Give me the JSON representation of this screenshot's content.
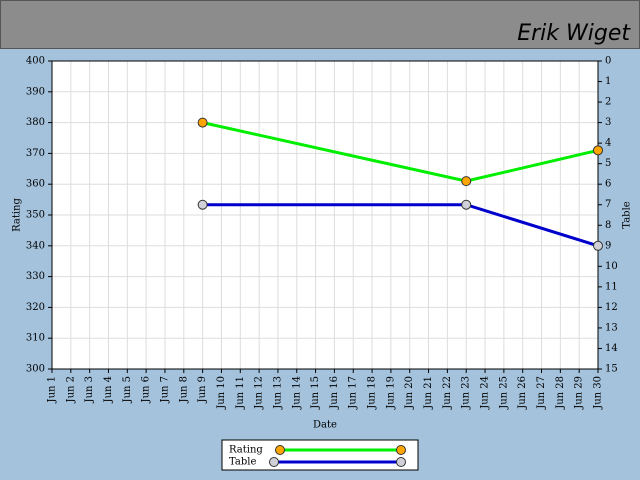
{
  "header": {
    "title": "Erik Wiget"
  },
  "chart_data": {
    "type": "line",
    "categories": [
      "Jun 1",
      "Jun 2",
      "Jun 3",
      "Jun 4",
      "Jun 5",
      "Jun 6",
      "Jun 7",
      "Jun 8",
      "Jun 9",
      "Jun 10",
      "Jun 11",
      "Jun 12",
      "Jun 13",
      "Jun 14",
      "Jun 15",
      "Jun 16",
      "Jun 17",
      "Jun 18",
      "Jun 19",
      "Jun 20",
      "Jun 21",
      "Jun 22",
      "Jun 23",
      "Jun 24",
      "Jun 25",
      "Jun 26",
      "Jun 27",
      "Jun 28",
      "Jun 29",
      "Jun 30"
    ],
    "x_label": "Date",
    "y_label": "Rating",
    "y2_label": "Table",
    "ylim": [
      300,
      400
    ],
    "yticks": [
      300,
      310,
      320,
      330,
      340,
      350,
      360,
      370,
      380,
      390,
      400
    ],
    "y2lim": [
      15,
      0
    ],
    "y2ticks": [
      0,
      1,
      2,
      3,
      4,
      5,
      6,
      7,
      8,
      9,
      10,
      11,
      12,
      13,
      14,
      15
    ],
    "grid": true,
    "span_gaps": true,
    "legend": "bottom",
    "series": [
      {
        "name": "Rating",
        "color": "#00ee00",
        "marker_color": "#ffa500",
        "values": [
          null,
          null,
          null,
          null,
          null,
          null,
          null,
          null,
          380,
          null,
          null,
          null,
          null,
          null,
          null,
          null,
          null,
          null,
          null,
          null,
          null,
          null,
          361,
          null,
          null,
          null,
          null,
          null,
          null,
          371
        ]
      },
      {
        "name": "Table",
        "color": "#0000cc",
        "marker_color": "#d0d0d8",
        "axis": "y2",
        "values": [
          null,
          null,
          null,
          null,
          null,
          null,
          null,
          null,
          7,
          null,
          null,
          null,
          null,
          null,
          null,
          null,
          null,
          null,
          null,
          null,
          null,
          null,
          7,
          null,
          null,
          null,
          null,
          null,
          null,
          9
        ]
      }
    ]
  }
}
